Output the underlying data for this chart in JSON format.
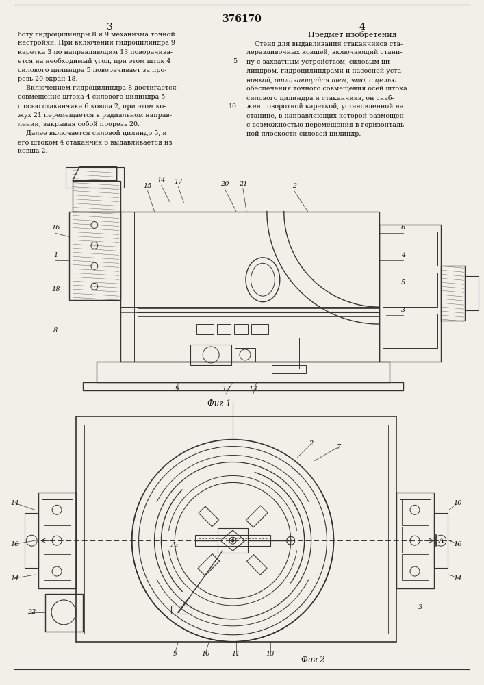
{
  "patent_number": "376170",
  "page_left": "3",
  "page_right": "4",
  "left_col_lines": [
    "боту гидроцилиндры 8 и 9 механизма точной",
    "настройки. При включении гидроцилиндра 9",
    "каретка 3 по направляющим 13 поворачива-",
    "ется на необходимый угол, при этом шток 4",
    "силового цилиндра 5 поворачивает за про-",
    "резь 20 экран 18.",
    "    Включением гидроцилиндра 8 достигается",
    "совмещение штока 4 силового цилиндра 5",
    "с осью стаканчика 6 ковша 2, при этом ко-",
    "жух 21 перемещается в радиальном направ-",
    "лении, закрывая собой прорезь 20.",
    "    Далее включается силовой цилиндр 5, и",
    "его штоком 4 стаканчик 6 выдавливается из",
    "ковша 2."
  ],
  "right_header": "Предмет изобретения",
  "right_col_lines": [
    "    Стенд для выдавливания стаканчиков ста-",
    "леразливочных ковшей, включающий стани-",
    "ну с захватным устройством, силовым ци-",
    "линдром, гидроцилиндрами и насосной уста-",
    "новкой, отличающийся тем, что, с целью",
    "обеспечения точного совмещения осей штока",
    "силового цилиндра и стаканчика, он снаб-",
    "жен поворотной кареткой, установленной на",
    "станине, в направляющих которой размещен",
    "с возможностью перемещения в горизонталь-",
    "ной плоскости силовой цилиндр."
  ],
  "fig1_caption": "Фиг 1",
  "fig2_caption": "Фиг 2",
  "bg": "#f0efe8",
  "tc": "#111111",
  "lc": "#333333"
}
